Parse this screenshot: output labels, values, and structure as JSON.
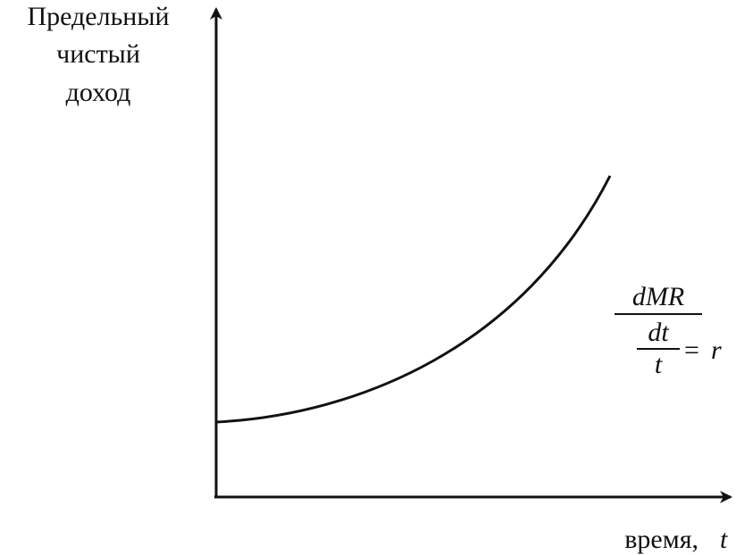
{
  "y_axis_label": [
    "Предельный",
    "чистый",
    "доход"
  ],
  "x_axis_label": {
    "text": "время,",
    "variable": "t"
  },
  "formula": {
    "numerator": "dMR",
    "inner_numerator": "dt",
    "inner_denominator": "t",
    "operator": "=",
    "rhs": "r"
  }
}
